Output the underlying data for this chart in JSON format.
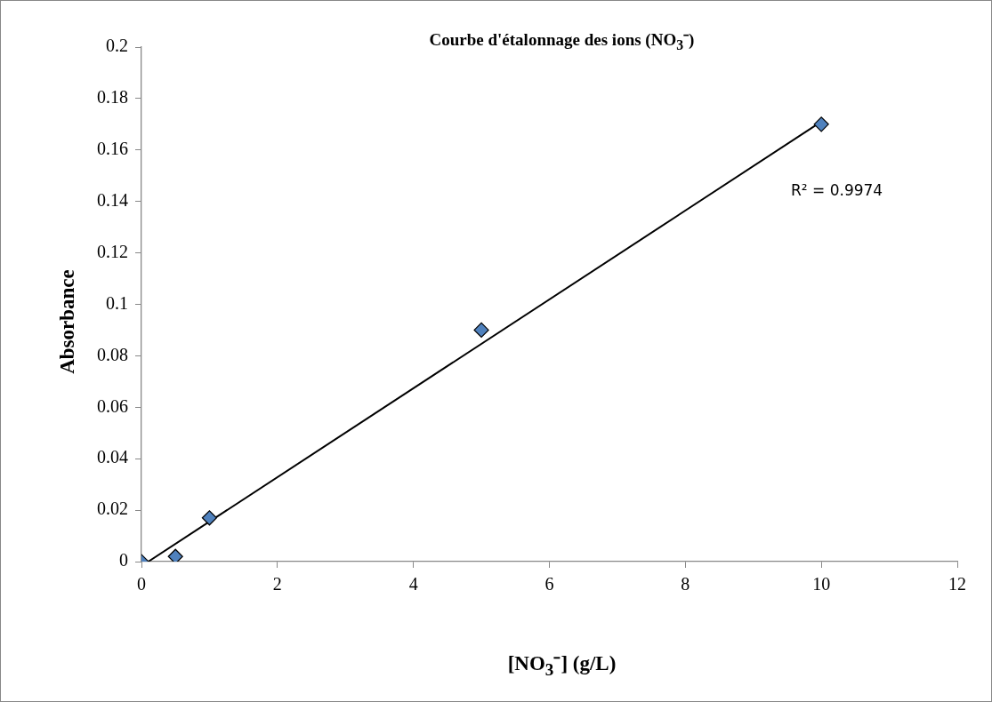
{
  "chart_data": {
    "type": "scatter",
    "title": "Courbe d'étalonnage des ions (NO$_{3}$⁻)",
    "xlabel": "[NO$_{3}$⁻]  (g/L)",
    "ylabel": "Absorbance",
    "xlim": [
      0,
      12
    ],
    "xticks": [
      0,
      2,
      4,
      6,
      8,
      10,
      12
    ],
    "ylim": [
      0,
      0.2
    ],
    "yticks": [
      0,
      0.02,
      0.04,
      0.06,
      0.08,
      0.1,
      0.12,
      0.14,
      0.16,
      0.18,
      0.2
    ],
    "grid": false,
    "legend": false,
    "series": [
      {
        "color": "#4f81bd",
        "marker": "diamond",
        "x": [
          0,
          0.5,
          1,
          5,
          10
        ],
        "values": [
          0,
          0.002,
          0.017,
          0.09,
          0.17
        ]
      },
      {
        "type": "line",
        "color": "#000000",
        "marker": "none",
        "line_style": "solid",
        "x": [
          0.1,
          10
        ],
        "values": [
          0,
          0.171
        ]
      }
    ],
    "annotations": [
      "R² = 0.9974"
    ]
  }
}
